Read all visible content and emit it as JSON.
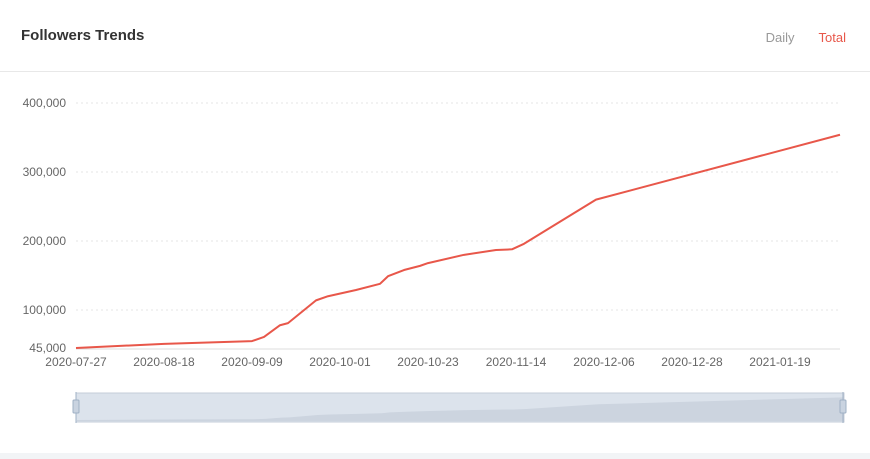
{
  "header": {
    "title": "Followers Trends",
    "tabs": [
      {
        "label": "Daily",
        "active": false
      },
      {
        "label": "Total",
        "active": true
      }
    ]
  },
  "chart_data": {
    "type": "line",
    "title": "Followers Trends",
    "series": [
      {
        "name": "Total",
        "color": "#e8574a",
        "points": [
          [
            "2020-07-27",
            45000
          ],
          [
            "2020-08-18",
            51000
          ],
          [
            "2020-09-09",
            55000
          ],
          [
            "2020-09-12",
            61000
          ],
          [
            "2020-09-16",
            78000
          ],
          [
            "2020-09-18",
            81000
          ],
          [
            "2020-09-25",
            114000
          ],
          [
            "2020-09-28",
            120000
          ],
          [
            "2020-10-05",
            129000
          ],
          [
            "2020-10-11",
            138000
          ],
          [
            "2020-10-13",
            149000
          ],
          [
            "2020-10-17",
            158000
          ],
          [
            "2020-10-21",
            164000
          ],
          [
            "2020-10-23",
            168000
          ],
          [
            "2020-11-01",
            180000
          ],
          [
            "2020-11-09",
            187000
          ],
          [
            "2020-11-13",
            188000
          ],
          [
            "2020-11-16",
            196000
          ],
          [
            "2020-12-04",
            260000
          ],
          [
            "2021-02-03",
            354000
          ]
        ]
      }
    ],
    "xlim": [
      "2020-07-27",
      "2021-02-03"
    ],
    "ylim": [
      45000,
      400000
    ],
    "yticks": [
      45000,
      100000,
      200000,
      300000,
      400000
    ],
    "ytick_labels": [
      "45,000",
      "100,000",
      "200,000",
      "300,000",
      "400,000"
    ],
    "xticks": [
      "2020-07-27",
      "2020-08-18",
      "2020-09-09",
      "2020-10-01",
      "2020-10-23",
      "2020-11-14",
      "2020-12-06",
      "2020-12-28",
      "2021-01-19"
    ],
    "grid": true,
    "zoom_slider": {
      "start": 0,
      "end": 100
    }
  }
}
